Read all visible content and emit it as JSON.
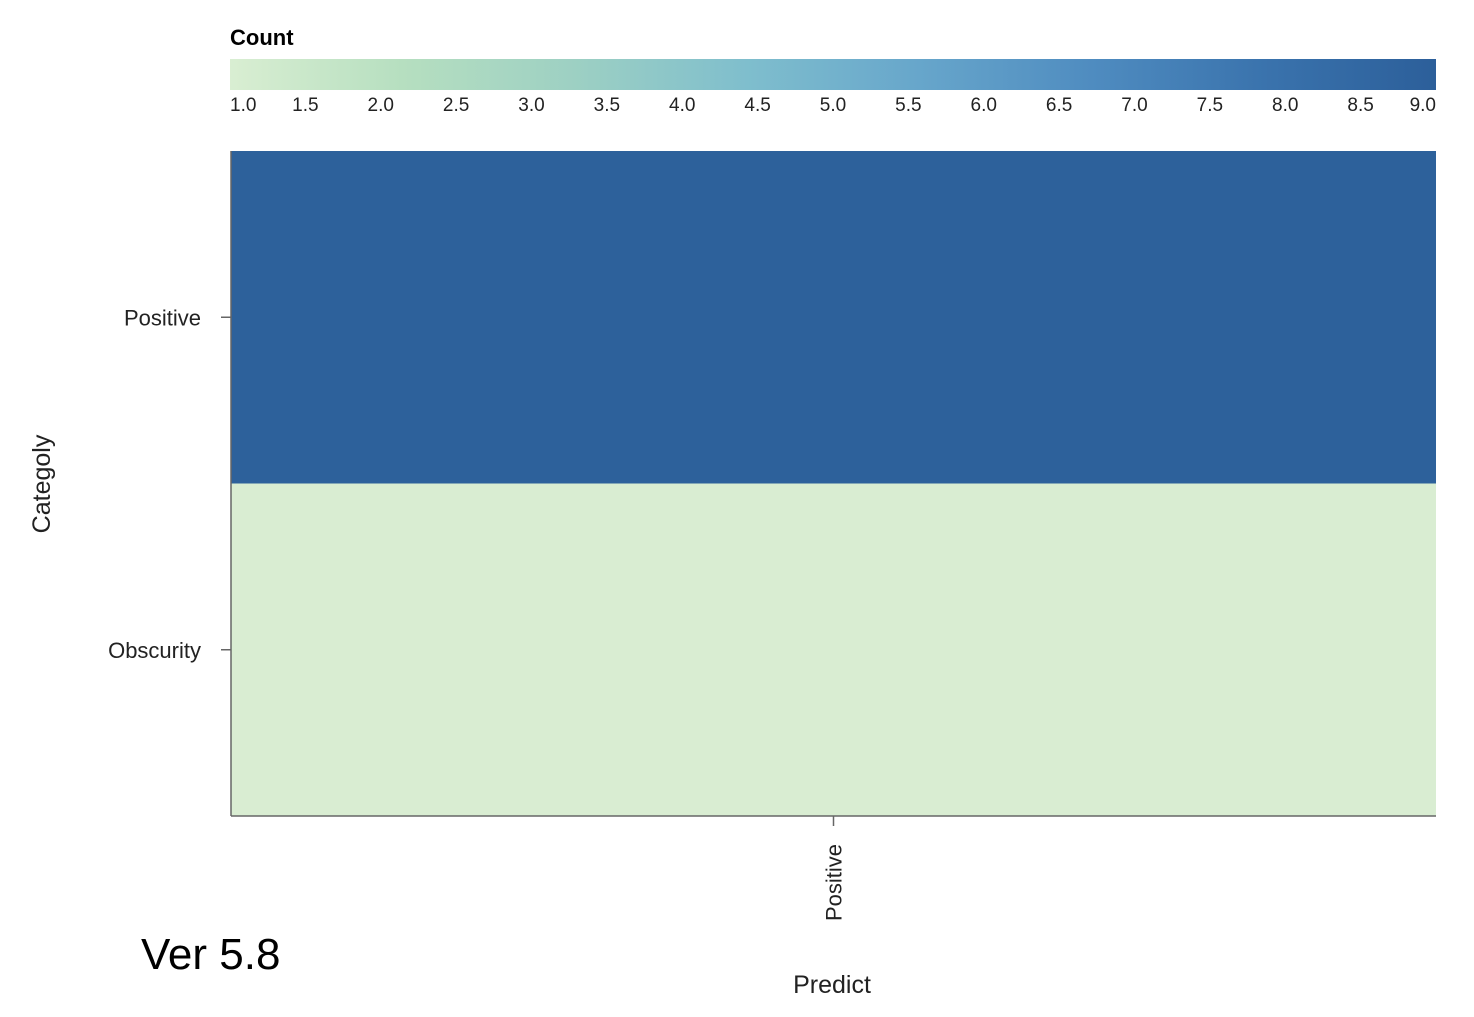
{
  "chart_data": {
    "type": "heatmap",
    "x_categories": [
      "Positive"
    ],
    "y_categories": [
      "Positive",
      "Obscurity"
    ],
    "values": [
      [
        9
      ],
      [
        1
      ]
    ],
    "xlabel": "Predict",
    "ylabel": "Categoly",
    "colorbar": {
      "title": "Count",
      "min": 1.0,
      "max": 9.0,
      "ticks": [
        "1.0",
        "1.5",
        "2.0",
        "2.5",
        "3.0",
        "3.5",
        "4.0",
        "4.5",
        "5.0",
        "5.5",
        "6.0",
        "6.5",
        "7.0",
        "7.5",
        "8.0",
        "8.5",
        "9.0"
      ],
      "colors": [
        "#d9eed2",
        "#b6dfc0",
        "#9dd0c3",
        "#7fbecd",
        "#67a6cb",
        "#4f8cc0",
        "#3a73ad",
        "#2c5f9a"
      ],
      "placement": "top"
    },
    "cell_colors": {
      "high": "#2d619b",
      "low": "#d9edd2"
    }
  },
  "footer": {
    "version_text": "Ver 5.8"
  }
}
